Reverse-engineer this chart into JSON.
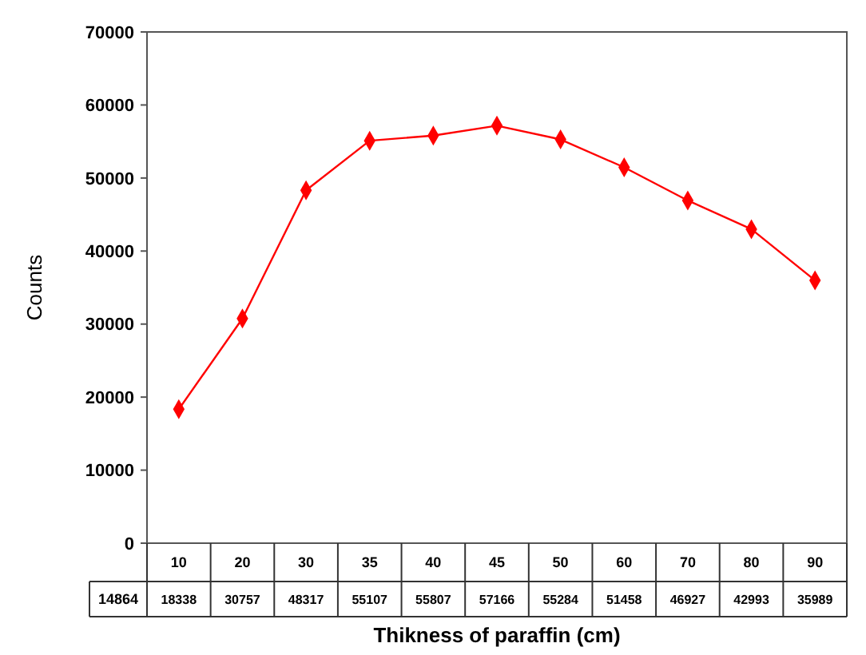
{
  "chart_data": {
    "type": "line",
    "xlabel": "Thikness of paraffin (cm)",
    "ylabel": "Counts",
    "categories": [
      "10",
      "20",
      "30",
      "35",
      "40",
      "45",
      "50",
      "60",
      "70",
      "80",
      "90"
    ],
    "series": [
      {
        "name": "14864",
        "color": "#ff0000",
        "values": [
          18338,
          30757,
          48317,
          55107,
          55807,
          57166,
          55284,
          51458,
          46927,
          42993,
          35989
        ]
      }
    ],
    "ylim": [
      0,
      70000
    ],
    "yticks": [
      0,
      10000,
      20000,
      30000,
      40000,
      50000,
      60000,
      70000
    ],
    "data_labels": true,
    "marker": "diamond",
    "grid": false
  }
}
